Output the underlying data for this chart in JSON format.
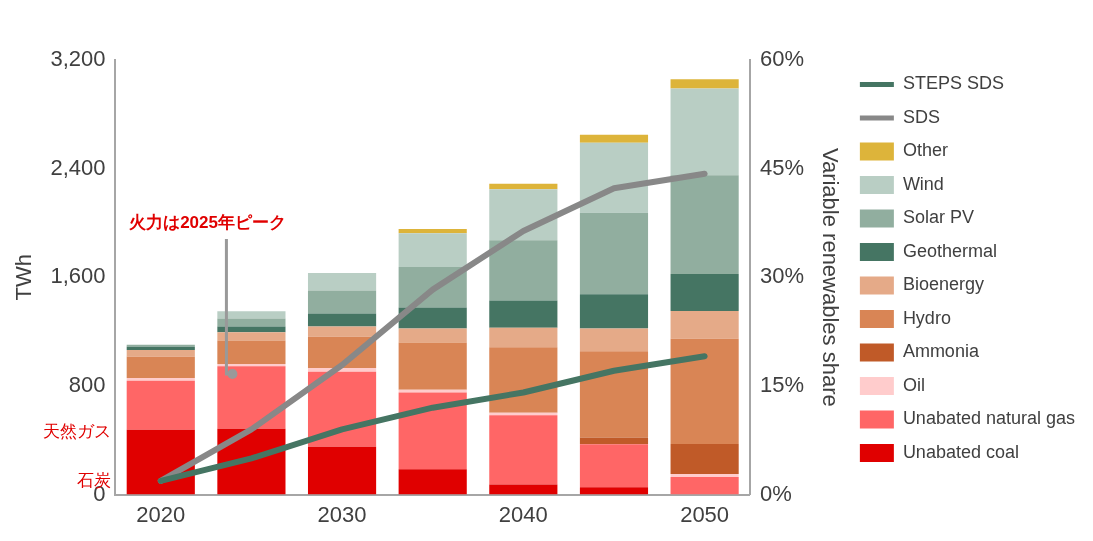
{
  "chart_data": {
    "type": "bar",
    "stacked": true,
    "ylabel": "TWh",
    "y2label": "Variable renewables share",
    "categories": [
      "2020",
      null,
      "2030",
      null,
      "2040",
      null,
      "2050"
    ],
    "series": [
      {
        "name": "Unabated coal",
        "color": "#e00000",
        "values": [
          478,
          485,
          353,
          186,
          74,
          54,
          0
        ]
      },
      {
        "name": "Unabated natural gas",
        "color": "#ff6666",
        "values": [
          360,
          460,
          552,
          566,
          510,
          316,
          130
        ]
      },
      {
        "name": "Oil",
        "color": "#ffcccc",
        "values": [
          20,
          17,
          27,
          20,
          18,
          null,
          22
        ]
      },
      {
        "name": "Ammonia",
        "color": "#c05a28",
        "values": [
          0,
          0,
          0,
          0,
          0,
          51,
          221
        ]
      },
      {
        "name": "Hydro",
        "color": "#d98555",
        "values": [
          157,
          172,
          230,
          348,
          483,
          635,
          775
        ]
      },
      {
        "name": "Bioenergy",
        "color": "#e5aa88",
        "values": [
          49,
          62,
          76,
          103,
          143,
          167,
          204
        ]
      },
      {
        "name": "Geothermal",
        "color": "#457563",
        "values": [
          24,
          41,
          96,
          154,
          201,
          252,
          272
        ]
      },
      {
        "name": "Solar PV",
        "color": "#91ae9f",
        "values": [
          15,
          59,
          169,
          299,
          444,
          601,
          728
        ]
      },
      {
        "name": "Wind",
        "color": "#b9cec4",
        "values": [
          null,
          54,
          128,
          248,
          375,
          515,
          638
        ]
      },
      {
        "name": "Other",
        "color": "#ddb43a",
        "values": [
          0,
          0,
          0,
          32,
          40,
          59,
          68
        ]
      },
      {
        "name": "STEPS SDS",
        "type": "line",
        "axis": "y2",
        "color": "#457563",
        "values": [
          1.9,
          5.0,
          9.0,
          12.0,
          14.1,
          17.1,
          19.1
        ]
      },
      {
        "name": "SDS",
        "type": "line",
        "axis": "y2",
        "color": "#888888",
        "values": [
          1.9,
          9.0,
          17.9,
          28.3,
          36.4,
          42.3,
          44.3
        ]
      }
    ],
    "ylim": [
      0,
      3200
    ],
    "yticks": [
      0,
      800,
      {
        "value": 1600,
        "label": "1,600"
      },
      {
        "value": 2400,
        "label": "2,400"
      },
      {
        "value": 3200,
        "label": "3,200"
      }
    ],
    "y2lim": [
      0,
      60
    ],
    "y2ticks": [
      {
        "value": 0,
        "label": "0%"
      },
      {
        "value": 15,
        "label": "15%"
      },
      {
        "value": 30,
        "label": "30%"
      },
      {
        "value": 45,
        "label": "45%"
      },
      {
        "value": 60,
        "label": "60%"
      }
    ],
    "annotations": [
      "火力は2025年ピーク",
      "天然ガス",
      "石炭"
    ],
    "grid": false,
    "legend": "right",
    "marker": "none",
    "line_style": "solid"
  }
}
